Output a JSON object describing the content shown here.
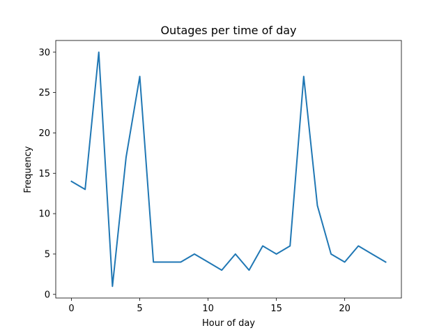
{
  "chart_data": {
    "type": "line",
    "title": "Outages per time of day",
    "xlabel": "Hour of day",
    "ylabel": "Frequency",
    "xlim": [
      -1.15,
      24.15
    ],
    "ylim": [
      -0.45,
      31.45
    ],
    "xticks": [
      0,
      5,
      10,
      15,
      20
    ],
    "yticks": [
      0,
      5,
      10,
      15,
      20,
      25,
      30
    ],
    "grid": false,
    "legend": "none",
    "series": [
      {
        "color": "#1f77b4",
        "x": [
          0,
          1,
          2,
          3,
          4,
          5,
          6,
          7,
          8,
          9,
          10,
          11,
          12,
          13,
          14,
          15,
          16,
          17,
          18,
          19,
          20,
          21,
          22,
          23
        ],
        "y": [
          14,
          13,
          30,
          1,
          17,
          27,
          4,
          4,
          4,
          5,
          4,
          3,
          5,
          3,
          6,
          5,
          6,
          27,
          11,
          5,
          4,
          6,
          5,
          4
        ]
      }
    ]
  }
}
